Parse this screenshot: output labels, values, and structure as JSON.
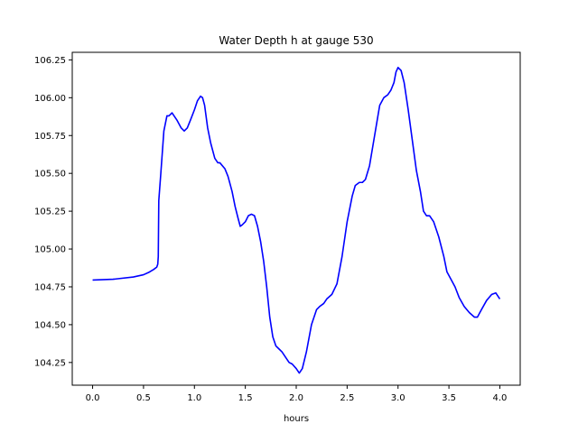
{
  "chart_data": {
    "type": "line",
    "title": "Water Depth h at gauge 530",
    "xlabel": "hours",
    "ylabel": "",
    "xlim": [
      -0.2,
      4.2
    ],
    "ylim": [
      104.1,
      106.3
    ],
    "xticks": [
      0.0,
      0.5,
      1.0,
      1.5,
      2.0,
      2.5,
      3.0,
      3.5,
      4.0
    ],
    "xtick_labels": [
      "0.0",
      "0.5",
      "1.0",
      "1.5",
      "2.0",
      "2.5",
      "3.0",
      "3.5",
      "4.0"
    ],
    "yticks": [
      104.25,
      104.5,
      104.75,
      105.0,
      105.25,
      105.5,
      105.75,
      106.0,
      106.25
    ],
    "ytick_labels": [
      "104.25",
      "104.50",
      "104.75",
      "105.00",
      "105.25",
      "105.50",
      "105.75",
      "106.00",
      "106.25"
    ],
    "grid": false,
    "series": [
      {
        "color": "#0000ff",
        "x": [
          0.0,
          0.2,
          0.4,
          0.5,
          0.55,
          0.6,
          0.63,
          0.64,
          0.645,
          0.65,
          0.67,
          0.7,
          0.73,
          0.75,
          0.78,
          0.8,
          0.83,
          0.87,
          0.9,
          0.93,
          0.96,
          1.0,
          1.03,
          1.06,
          1.08,
          1.1,
          1.13,
          1.16,
          1.2,
          1.23,
          1.25,
          1.3,
          1.33,
          1.37,
          1.4,
          1.43,
          1.45,
          1.47,
          1.5,
          1.53,
          1.56,
          1.59,
          1.62,
          1.65,
          1.68,
          1.71,
          1.74,
          1.77,
          1.8,
          1.83,
          1.86,
          1.9,
          1.93,
          1.96,
          2.0,
          2.03,
          2.06,
          2.1,
          2.15,
          2.2,
          2.23,
          2.27,
          2.3,
          2.35,
          2.4,
          2.45,
          2.5,
          2.55,
          2.58,
          2.62,
          2.65,
          2.68,
          2.72,
          2.77,
          2.82,
          2.86,
          2.9,
          2.93,
          2.96,
          2.98,
          3.0,
          3.03,
          3.06,
          3.1,
          3.14,
          3.18,
          3.22,
          3.25,
          3.28,
          3.31,
          3.35,
          3.4,
          3.45,
          3.48,
          3.52,
          3.56,
          3.6,
          3.65,
          3.7,
          3.75,
          3.78,
          3.82,
          3.87,
          3.92,
          3.96,
          4.0
        ],
        "y": [
          104.795,
          104.8,
          104.815,
          104.83,
          104.845,
          104.865,
          104.88,
          104.9,
          104.95,
          105.32,
          105.5,
          105.78,
          105.88,
          105.88,
          105.9,
          105.88,
          105.85,
          105.8,
          105.78,
          105.8,
          105.85,
          105.92,
          105.98,
          106.01,
          106.0,
          105.95,
          105.8,
          105.7,
          105.6,
          105.57,
          105.57,
          105.53,
          105.48,
          105.38,
          105.28,
          105.2,
          105.15,
          105.16,
          105.18,
          105.22,
          105.23,
          105.22,
          105.15,
          105.05,
          104.92,
          104.75,
          104.55,
          104.42,
          104.36,
          104.34,
          104.32,
          104.28,
          104.25,
          104.24,
          104.21,
          104.18,
          104.21,
          104.32,
          104.5,
          104.6,
          104.62,
          104.64,
          104.67,
          104.7,
          104.77,
          104.95,
          105.18,
          105.35,
          105.42,
          105.44,
          105.44,
          105.46,
          105.55,
          105.75,
          105.95,
          106.0,
          106.02,
          106.05,
          106.1,
          106.17,
          106.2,
          106.18,
          106.1,
          105.92,
          105.72,
          105.52,
          105.38,
          105.25,
          105.22,
          105.22,
          105.18,
          105.08,
          104.95,
          104.85,
          104.8,
          104.75,
          104.68,
          104.62,
          104.58,
          104.55,
          104.55,
          104.6,
          104.66,
          104.7,
          104.71,
          104.67
        ]
      }
    ]
  }
}
